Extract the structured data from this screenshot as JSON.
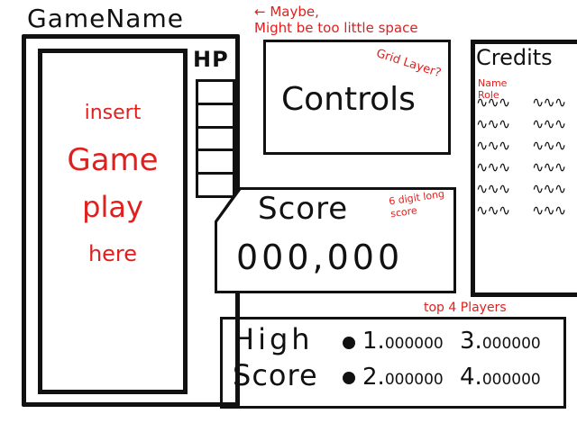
{
  "header": {
    "title": "GameName",
    "note": "← Maybe,\nMight be too little space"
  },
  "game": {
    "placeholder_lines": [
      "insert",
      "Game",
      "play",
      "here"
    ]
  },
  "hp": {
    "label": "HP",
    "segments": 5
  },
  "controls": {
    "label": "Controls",
    "note": "Grid Layer?"
  },
  "score": {
    "label": "Score",
    "value": "000,000",
    "note": "6 digit long score"
  },
  "credits": {
    "title": "Credits",
    "col_name": "Name",
    "col_role": "Role",
    "rows": [
      [
        "∿∿∿",
        "∿∿∿"
      ],
      [
        "∿∿∿",
        "∿∿∿"
      ],
      [
        "∿∿∿",
        "∿∿∿"
      ],
      [
        "∿∿∿",
        "∿∿∿"
      ],
      [
        "∿∿∿",
        "∿∿∿"
      ],
      [
        "∿∿∿",
        "∿∿∿"
      ]
    ]
  },
  "highscore": {
    "label_line1": "High",
    "label_line2": "Score",
    "note": "top 4 Players",
    "entries": [
      {
        "rank": "1.",
        "value": "000000"
      },
      {
        "rank": "2.",
        "value": "000000"
      },
      {
        "rank": "3.",
        "value": "000000"
      },
      {
        "rank": "4.",
        "value": "000000"
      }
    ]
  },
  "colors": {
    "ink": "#111111",
    "annotation": "#e0201e",
    "background": "#ffffff"
  }
}
